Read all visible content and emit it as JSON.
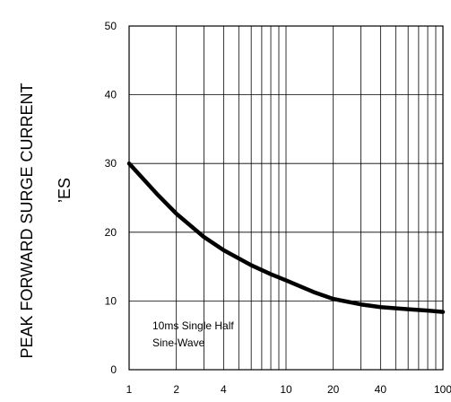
{
  "chart_data": {
    "type": "line",
    "title": "",
    "xlabel": "",
    "ylabel": "PEAK FORWARD SURGE CURRENT",
    "ylabel_secondary": "’ES",
    "x_scale": "log",
    "xlim": [
      1,
      100
    ],
    "ylim": [
      0,
      50
    ],
    "grid": true,
    "x_ticks": [
      1,
      2,
      4,
      10,
      20,
      40,
      100
    ],
    "x_tick_labels": [
      "1",
      "2",
      "4",
      "10",
      "20",
      "40",
      "100"
    ],
    "y_ticks": [
      0,
      10,
      20,
      30,
      40,
      50
    ],
    "y_tick_labels": [
      "0",
      "10",
      "20",
      "30",
      "40",
      "50"
    ],
    "annotation": [
      "10ms Single Half",
      "Sine-Wave"
    ],
    "series": [
      {
        "x": [
          1,
          1.5,
          2,
          3,
          4,
          6,
          8,
          10,
          15,
          20,
          30,
          40,
          60,
          80,
          100
        ],
        "y": [
          30,
          25.6,
          22.7,
          19.3,
          17.4,
          15.2,
          13.9,
          13.0,
          11.3,
          10.3,
          9.5,
          9.1,
          8.8,
          8.6,
          8.4
        ]
      }
    ]
  }
}
